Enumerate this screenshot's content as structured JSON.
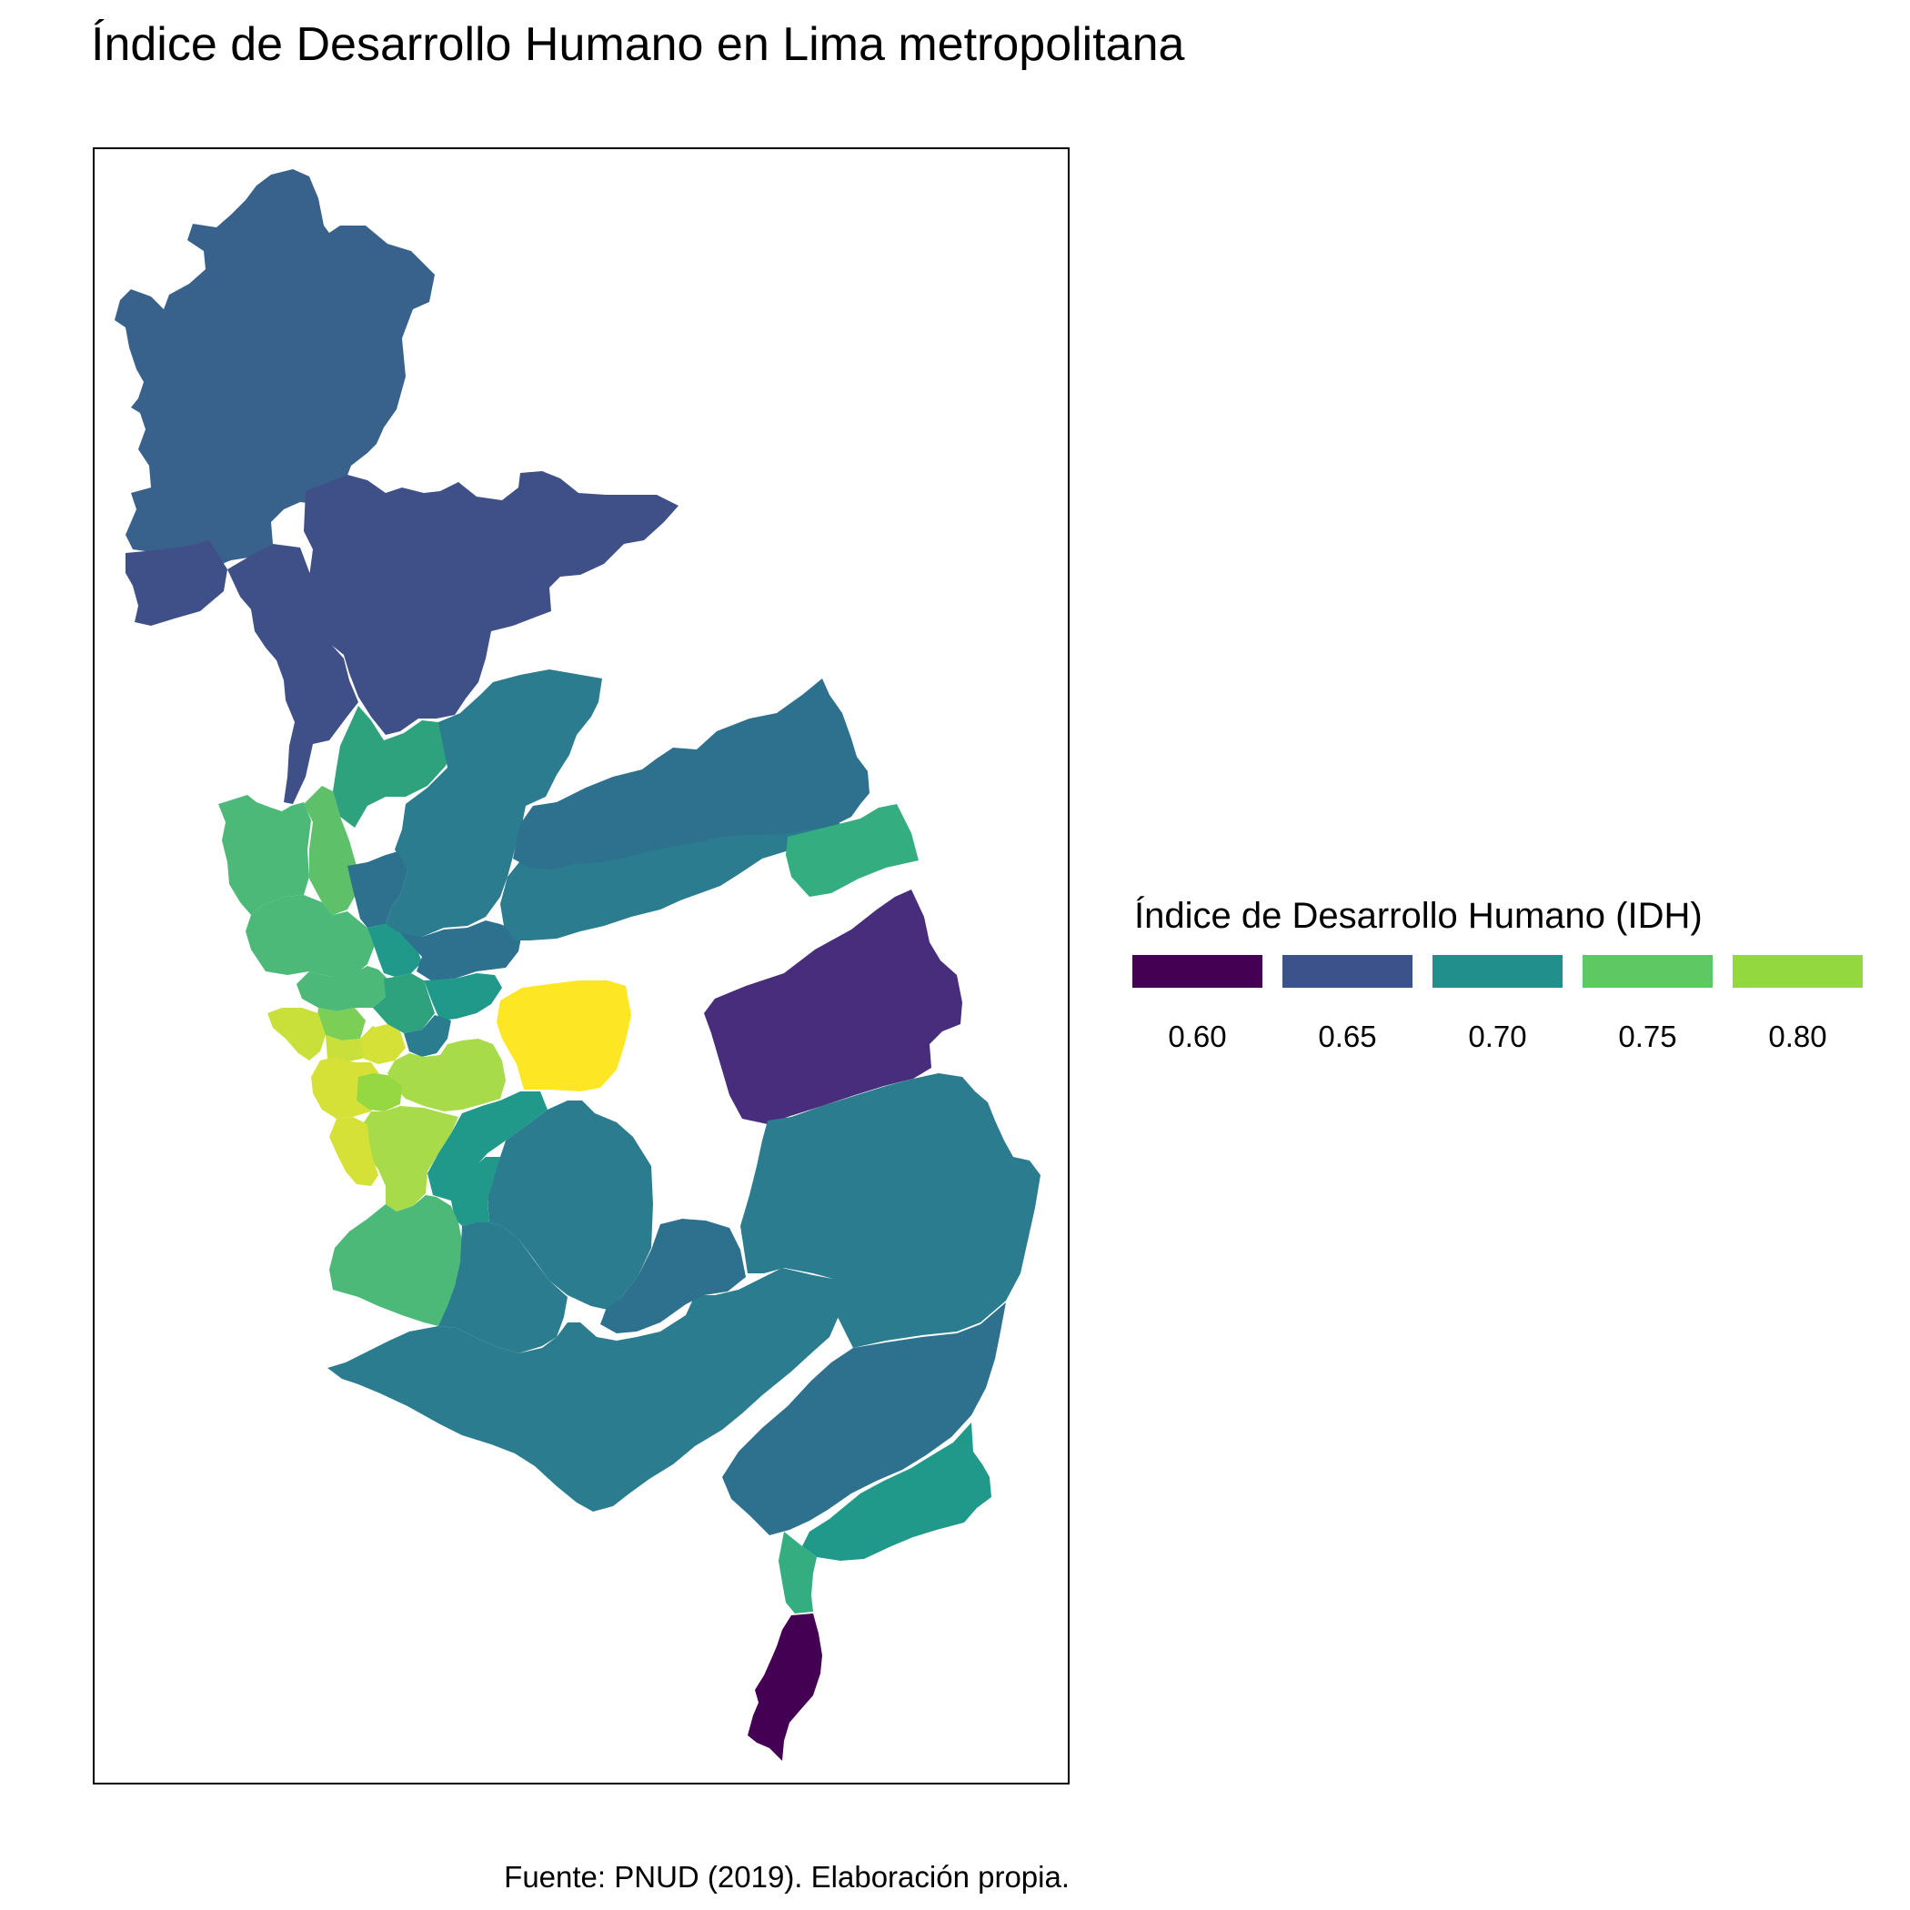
{
  "title": "Índice de Desarrollo Humano en Lima metropolitana",
  "legend": {
    "title": "Índice de Desarrollo Humano (IDH)",
    "items": [
      {
        "label": "0.60",
        "value": 0.6,
        "color": "#440154"
      },
      {
        "label": "0.65",
        "value": 0.65,
        "color": "#3b528b"
      },
      {
        "label": "0.70",
        "value": 0.7,
        "color": "#21908c"
      },
      {
        "label": "0.75",
        "value": 0.75,
        "color": "#5ec962"
      },
      {
        "label": "0.80",
        "value": 0.8,
        "color": "#94d840"
      }
    ]
  },
  "map": {
    "palette": "viridis",
    "colors": {
      "c060": "#440154",
      "c064": "#472d7b",
      "c065": "#3f4f88",
      "c067": "#38628b",
      "c069": "#2d718e",
      "c070": "#2b7c8e",
      "c072": "#21998a",
      "c074": "#2ea27d",
      "c075": "#34ae80",
      "c076": "#4cb979",
      "c077": "#5ec16a",
      "c078": "#7bcf56",
      "c079": "#95d842",
      "c080": "#a7db4a",
      "c081": "#c9df3a",
      "c082": "#d5e137",
      "c083": "#fde725"
    }
  },
  "caption": "Fuente: PNUD (2019). Elaboración propia."
}
